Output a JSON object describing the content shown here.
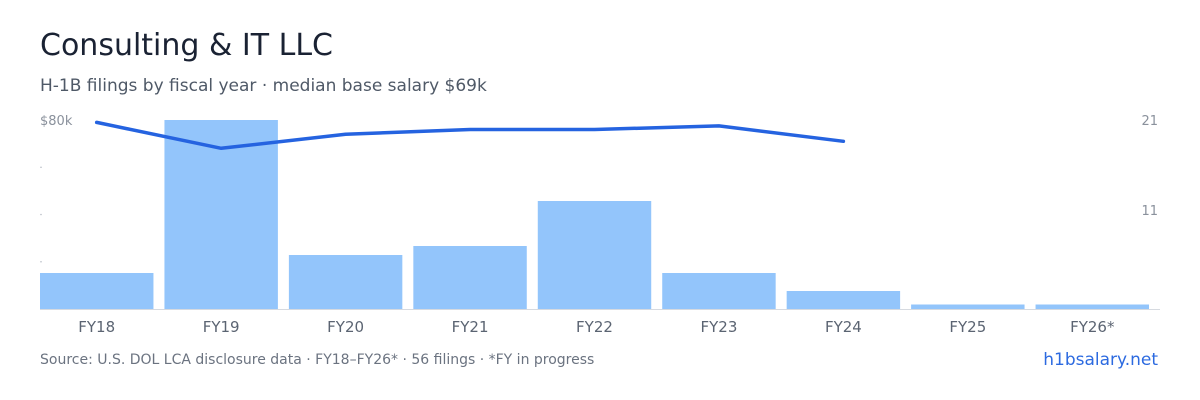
{
  "header": {
    "title": "Consulting & IT LLC",
    "subtitle": "H-1B filings by fiscal year · median base salary $69k"
  },
  "footer": {
    "source": "Source: U.S. DOL LCA disclosure data · FY18–FY26* · 56 filings · *FY in progress",
    "brand": "h1bsalary.net"
  },
  "chart_data": {
    "type": "bar",
    "categories": [
      "FY18",
      "FY19",
      "FY20",
      "FY21",
      "FY22",
      "FY23",
      "FY24",
      "FY25",
      "FY26*"
    ],
    "series": [
      {
        "type": "bar",
        "axis": "right",
        "values": [
          4,
          21,
          6,
          7,
          12,
          4,
          2,
          0.5,
          0.5
        ]
      },
      {
        "type": "line",
        "axis": "left",
        "values": [
          79,
          68,
          74,
          76,
          76,
          77.5,
          71,
          null,
          null
        ]
      }
    ],
    "left_axis": {
      "max_label": "$80k",
      "range": [
        0,
        80
      ]
    },
    "right_axis": {
      "tick_labels": [
        "21",
        "11"
      ],
      "range": [
        0,
        21
      ]
    },
    "colors": {
      "bar": "#93c5fb",
      "line": "#2563e0"
    },
    "grid": false
  }
}
